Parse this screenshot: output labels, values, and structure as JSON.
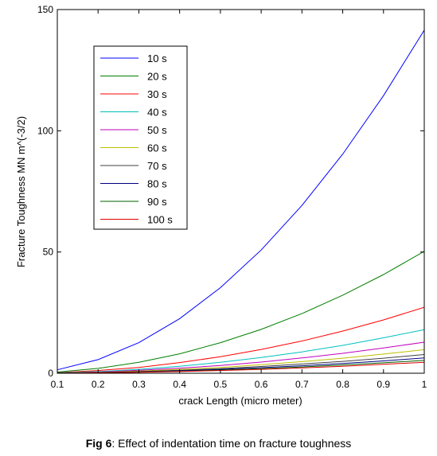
{
  "chart_data": {
    "type": "line",
    "xlabel": "crack Length (micro meter)",
    "ylabel": "Fracture Toughness MN m^(-3/2)",
    "xlim": [
      0.1,
      1
    ],
    "ylim": [
      0,
      150
    ],
    "xticks": [
      "0.1",
      "0.2",
      "0.3",
      "0.4",
      "0.5",
      "0.6",
      "0.7",
      "0.8",
      "0.9",
      "1"
    ],
    "yticks": [
      "0",
      "50",
      "100",
      "150"
    ],
    "grid": false,
    "legend_position": "top-left",
    "x": [
      0.1,
      0.2,
      0.3,
      0.4,
      0.5,
      0.6,
      0.7,
      0.8,
      0.9,
      1.0
    ],
    "series": [
      {
        "name": "10 s",
        "color": "#0000ff",
        "values": [
          1.4,
          5.6,
          12.6,
          22.5,
          35.3,
          50.8,
          69.2,
          90.4,
          114.5,
          141.5
        ]
      },
      {
        "name": "20 s",
        "color": "#007f00",
        "values": [
          0.5,
          2.0,
          4.5,
          8.0,
          12.6,
          18.1,
          24.6,
          32.2,
          40.7,
          50.3
        ]
      },
      {
        "name": "30 s",
        "color": "#ff0000",
        "values": [
          0.3,
          1.1,
          2.4,
          4.4,
          6.8,
          9.8,
          13.3,
          17.4,
          22.0,
          27.2
        ]
      },
      {
        "name": "40 s",
        "color": "#00bfbf",
        "values": [
          0.2,
          0.7,
          1.6,
          2.9,
          4.5,
          6.5,
          8.8,
          11.5,
          14.6,
          18.0
        ]
      },
      {
        "name": "50 s",
        "color": "#bf00bf",
        "values": [
          0.1,
          0.5,
          1.2,
          2.1,
          3.2,
          4.6,
          6.3,
          8.2,
          10.4,
          12.8
        ]
      },
      {
        "name": "60 s",
        "color": "#bfbf00",
        "values": [
          0.1,
          0.4,
          0.9,
          1.6,
          2.4,
          3.5,
          4.8,
          6.2,
          7.9,
          9.7
        ]
      },
      {
        "name": "70 s",
        "color": "#404040",
        "values": [
          0.1,
          0.3,
          0.7,
          1.2,
          1.9,
          2.8,
          3.8,
          4.9,
          6.2,
          7.7
        ]
      },
      {
        "name": "80 s",
        "color": "#00007f",
        "values": [
          0.1,
          0.3,
          0.6,
          1.0,
          1.6,
          2.3,
          3.1,
          4.0,
          5.1,
          6.3
        ]
      },
      {
        "name": "90 s",
        "color": "#005f00",
        "values": [
          0.1,
          0.2,
          0.5,
          0.8,
          1.3,
          1.9,
          2.6,
          3.4,
          4.3,
          5.3
        ]
      },
      {
        "name": "100 s",
        "color": "#df0000",
        "values": [
          0.0,
          0.2,
          0.4,
          0.7,
          1.1,
          1.6,
          2.2,
          2.9,
          3.7,
          4.5
        ]
      }
    ]
  },
  "caption": {
    "label": "Fig 6",
    "text": ": Effect of indentation time on fracture toughness"
  }
}
